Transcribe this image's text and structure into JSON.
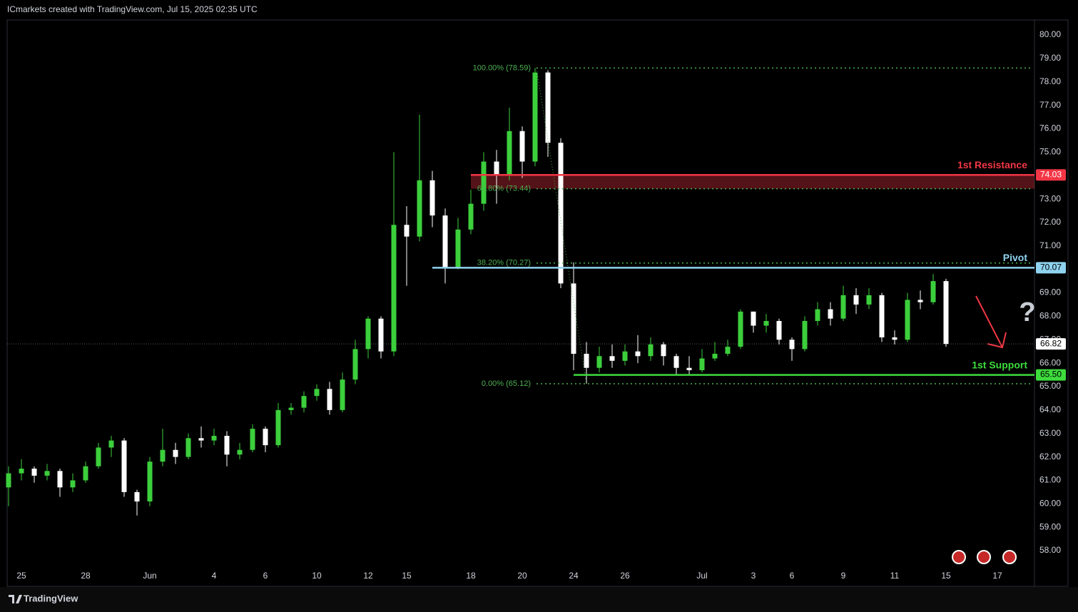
{
  "chart_data": {
    "type": "candlestick",
    "title": "ICmarkets created with TradingView.com, Jul 15, 2025 02:35 UTC",
    "footer": "TradingView",
    "annotation": "?",
    "up_color": "#3ccf3c",
    "down_color": "#ffffff",
    "categories": [
      null,
      "25",
      null,
      null,
      null,
      null,
      "28",
      null,
      null,
      null,
      null,
      "Jun",
      null,
      null,
      null,
      null,
      "4",
      null,
      null,
      null,
      "6",
      null,
      null,
      null,
      "10",
      null,
      null,
      null,
      "12",
      null,
      null,
      "15",
      null,
      null,
      null,
      null,
      "18",
      null,
      null,
      null,
      "20",
      null,
      null,
      null,
      "24",
      null,
      null,
      null,
      "26",
      null,
      null,
      null,
      null,
      null,
      "Jul",
      null,
      null,
      null,
      "3",
      null,
      null,
      "6",
      null,
      null,
      null,
      "9",
      null,
      null,
      null,
      "11",
      null,
      null,
      null,
      "15",
      null,
      null,
      null,
      "17"
    ],
    "open": [
      60.7,
      61.3,
      61.5,
      61.2,
      61.4,
      60.7,
      61.0,
      61.6,
      62.4,
      62.7,
      60.5,
      60.1,
      61.8,
      62.3,
      62.0,
      62.8,
      62.7,
      62.9,
      62.1,
      62.3,
      63.2,
      62.5,
      64.0,
      64.1,
      64.6,
      64.9,
      64.0,
      65.3,
      66.6,
      67.9,
      66.5,
      71.9,
      71.4,
      73.8,
      72.3,
      70.1,
      71.7,
      72.8,
      74.6,
      74.0,
      75.9,
      74.6,
      78.4,
      75.4,
      69.4,
      66.4,
      65.8,
      66.3,
      66.1,
      66.5,
      66.3,
      66.8,
      66.3,
      65.8,
      65.7,
      66.2,
      66.4,
      66.7,
      68.2,
      67.6,
      67.8,
      67.0,
      66.6,
      67.8,
      68.3,
      67.9,
      68.9,
      68.5,
      68.9,
      67.1,
      67.0,
      68.7,
      68.6,
      69.5,
      null,
      null,
      null,
      null
    ],
    "high": [
      61.6,
      61.9,
      61.6,
      61.7,
      61.5,
      61.3,
      61.8,
      62.6,
      62.9,
      62.8,
      60.6,
      62.0,
      63.2,
      62.6,
      63.0,
      63.3,
      63.2,
      63.1,
      62.6,
      63.4,
      63.3,
      64.3,
      64.3,
      64.8,
      65.1,
      65.2,
      65.6,
      67.0,
      68.0,
      68.0,
      75.0,
      72.7,
      76.6,
      74.2,
      72.6,
      72.2,
      73.4,
      75.0,
      75.1,
      76.9,
      76.1,
      78.59,
      78.5,
      75.6,
      70.3,
      66.9,
      66.7,
      66.8,
      66.8,
      67.2,
      67.1,
      66.9,
      66.4,
      66.3,
      66.6,
      66.9,
      67.0,
      68.3,
      68.2,
      68.1,
      67.9,
      67.1,
      68.0,
      68.6,
      68.6,
      69.3,
      69.2,
      69.2,
      69.0,
      67.4,
      69.0,
      69.1,
      69.8,
      69.6,
      null,
      null,
      null,
      null
    ],
    "low": [
      59.9,
      61.0,
      60.9,
      61.0,
      60.3,
      60.5,
      60.9,
      61.5,
      62.0,
      60.3,
      59.5,
      59.9,
      61.6,
      61.7,
      61.9,
      62.4,
      62.5,
      61.6,
      61.9,
      62.2,
      62.2,
      62.4,
      63.8,
      63.9,
      64.4,
      63.8,
      63.9,
      65.1,
      66.2,
      66.2,
      66.3,
      69.3,
      71.2,
      71.8,
      69.4,
      70.0,
      71.5,
      72.5,
      72.8,
      73.8,
      73.9,
      74.4,
      74.8,
      69.2,
      65.7,
      65.12,
      65.6,
      65.8,
      65.9,
      66.0,
      66.1,
      65.9,
      65.5,
      65.5,
      65.6,
      66.1,
      66.3,
      66.6,
      67.3,
      67.3,
      66.8,
      66.1,
      66.5,
      67.6,
      67.6,
      67.8,
      68.1,
      68.3,
      66.9,
      66.8,
      66.9,
      68.3,
      68.5,
      66.7,
      null,
      null,
      null,
      null
    ],
    "close": [
      61.3,
      61.5,
      61.2,
      61.4,
      60.7,
      61.0,
      61.6,
      62.4,
      62.7,
      60.5,
      60.1,
      61.8,
      62.3,
      62.0,
      62.8,
      62.7,
      62.9,
      62.1,
      62.3,
      63.2,
      62.5,
      64.0,
      64.1,
      64.6,
      64.9,
      64.0,
      65.3,
      66.6,
      67.9,
      66.5,
      71.9,
      71.4,
      73.8,
      72.3,
      70.1,
      71.7,
      72.8,
      74.6,
      74.0,
      75.9,
      74.6,
      78.4,
      75.4,
      69.4,
      66.4,
      65.8,
      66.3,
      66.1,
      66.5,
      66.3,
      66.8,
      66.3,
      65.8,
      65.7,
      66.2,
      66.4,
      66.7,
      68.2,
      67.6,
      67.8,
      67.0,
      66.6,
      67.8,
      68.3,
      67.9,
      68.9,
      68.5,
      68.9,
      67.1,
      67.0,
      68.7,
      68.6,
      69.5,
      66.82,
      null,
      null,
      null,
      null
    ],
    "ylim": [
      56.48,
      80.64
    ],
    "yticks": [
      {
        "value": 58,
        "label": "58.00"
      },
      {
        "value": 59,
        "label": "59.00"
      },
      {
        "value": 60,
        "label": "60.00"
      },
      {
        "value": 61,
        "label": "61.00"
      },
      {
        "value": 62,
        "label": "62.00"
      },
      {
        "value": 63,
        "label": "63.00"
      },
      {
        "value": 64,
        "label": "64.00"
      },
      {
        "value": 65,
        "label": "65.00"
      },
      {
        "value": 66,
        "label": "66.00"
      },
      {
        "value": 67,
        "label": "67.00"
      },
      {
        "value": 68,
        "label": "68.00"
      },
      {
        "value": 69,
        "label": "69.00"
      },
      {
        "value": 70,
        "label": "70.00"
      },
      {
        "value": 71,
        "label": "71.00"
      },
      {
        "value": 72,
        "label": "72.00"
      },
      {
        "value": 73,
        "label": "73.00"
      },
      {
        "value": 74,
        "label": "74.00"
      },
      {
        "value": 75,
        "label": "75.00"
      },
      {
        "value": 76,
        "label": "76.00"
      },
      {
        "value": 77,
        "label": "77.00"
      },
      {
        "value": 78,
        "label": "78.00"
      },
      {
        "value": 79,
        "label": "79.00"
      },
      {
        "value": 80,
        "label": "80.00"
      }
    ],
    "fib": [
      {
        "label": "100.00% (78.59)",
        "price": 78.59
      },
      {
        "label": "61.80% (73.44)",
        "price": 73.44
      },
      {
        "label": "38.20% (70.27)",
        "price": 70.27
      },
      {
        "label": "0.00% (65.12)",
        "price": 65.12
      }
    ],
    "fib_color": "#4caf50",
    "levels": [
      {
        "name": "1st Resistance",
        "price": 74.03,
        "color": "#f23645"
      },
      {
        "name": "Pivot",
        "price": 70.07,
        "color": "#8fd3f0"
      },
      {
        "name": "1st Support",
        "price": {
          "value": 65.5,
          "label": "65.50"
        },
        "color": "#3ddc3d"
      }
    ]
  }
}
